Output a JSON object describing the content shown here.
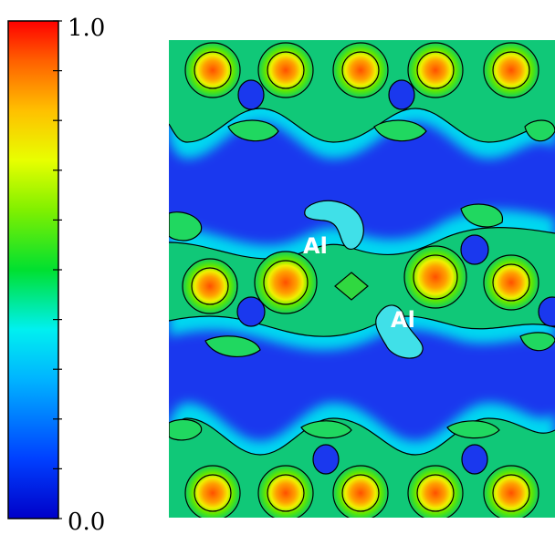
{
  "colorbar": {
    "max_label": "1.0",
    "min_label": "0.0",
    "gradient_colors": [
      "#0000cc",
      "#0050ff",
      "#00c8ff",
      "#00ffe0",
      "#00e040",
      "#7df000",
      "#e8ff00",
      "#ffc000",
      "#ff6000",
      "#ff0000"
    ]
  },
  "atom_labels": [
    {
      "text": "Al"
    },
    {
      "text": "Al"
    }
  ],
  "colors": {
    "background_density": "#1a3cf0",
    "contour_line": "#000000",
    "label_text": "#ffffff"
  }
}
